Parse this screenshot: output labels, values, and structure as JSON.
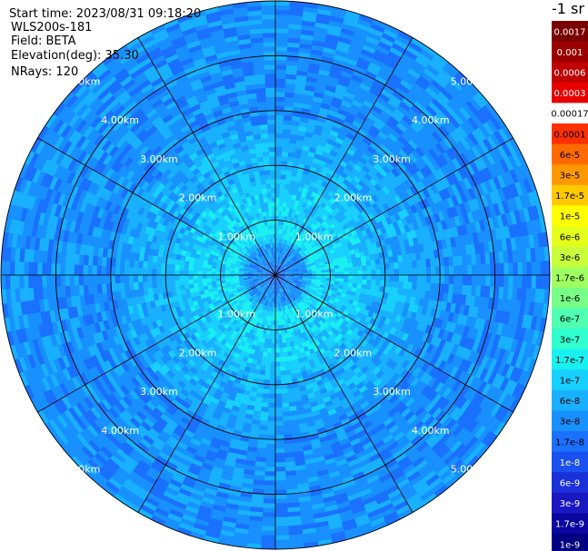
{
  "info": {
    "start_time": "Start time: 2023/08/31 09:18:20",
    "instrument": "WLS200s-181",
    "field": "Field: BETA",
    "elevation": "Elevation(deg): 35.30",
    "nrays": "NRays: 120"
  },
  "chart_data": {
    "type": "heatmap",
    "projection": "polar-ppi",
    "field": "BETA",
    "colorbar_title": "-1 sr",
    "max_range_km": 5.0,
    "range_rings_km": [
      1.0,
      2.0,
      3.0,
      4.0,
      5.0
    ],
    "range_ring_labels": [
      "1.00km",
      "2.00km",
      "3.00km",
      "4.00km",
      "5.00km"
    ],
    "azimuth_spokes_deg": [
      0,
      30,
      60,
      90,
      120,
      150,
      180,
      210,
      240,
      270,
      300,
      330
    ],
    "n_rays": 120,
    "colorbar": {
      "labels": [
        "0.0017",
        "0.001",
        "0.0006",
        "0.0003",
        "0.00017",
        "0.0001",
        "6e-5",
        "3e-5",
        "1.7e-5",
        "1e-5",
        "6e-6",
        "3e-6",
        "1.7e-6",
        "1e-6",
        "6e-7",
        "3e-7",
        "1.7e-7",
        "1e-7",
        "6e-8",
        "3e-8",
        "1.7e-8",
        "1e-8",
        "6e-9",
        "3e-9",
        "1.7e-9",
        "1e-9"
      ],
      "colors": [
        "#7a0000",
        "#9b0000",
        "#c00000",
        "#e60000",
        "#ffffff",
        "#ff3000",
        "#ff6a00",
        "#ff9800",
        "#ffc800",
        "#ffff00",
        "#e6ff1a",
        "#c8ff3a",
        "#a0ff60",
        "#78ff88",
        "#50ffb0",
        "#30ffd0",
        "#18f0f0",
        "#18d0ff",
        "#18b0ff",
        "#1890ff",
        "#1a70ff",
        "#1a50f0",
        "#1a30d8",
        "#1a18c0",
        "#0a08a0",
        "#000080"
      ],
      "label_colors": [
        "#ffffff",
        "#ffffff",
        "#ffffff",
        "#ffffff",
        "#000000",
        "#000000",
        "#000000",
        "#000000",
        "#000000",
        "#000000",
        "#000000",
        "#000000",
        "#000000",
        "#000000",
        "#000000",
        "#000000",
        "#000000",
        "#000000",
        "#000000",
        "#000000",
        "#000000",
        "#ffffff",
        "#ffffff",
        "#ffffff",
        "#ffffff",
        "#ffffff"
      ]
    },
    "radial_profile": [
      {
        "range_km": 0.0,
        "beta": "1e-8"
      },
      {
        "range_km": 0.25,
        "beta": "3e-8"
      },
      {
        "range_km": 0.5,
        "beta": "3e-8"
      },
      {
        "range_km": 0.75,
        "beta": "1.7e-7"
      },
      {
        "range_km": 1.0,
        "beta": "1e-7"
      },
      {
        "range_km": 1.5,
        "beta": "1e-7"
      },
      {
        "range_km": 2.0,
        "beta": "6e-8"
      },
      {
        "range_km": 2.5,
        "beta": "6e-8"
      },
      {
        "range_km": 3.0,
        "beta": "3e-8"
      },
      {
        "range_km": 4.0,
        "beta": "3e-8"
      },
      {
        "range_km": 5.0,
        "beta": "3e-8"
      }
    ]
  }
}
